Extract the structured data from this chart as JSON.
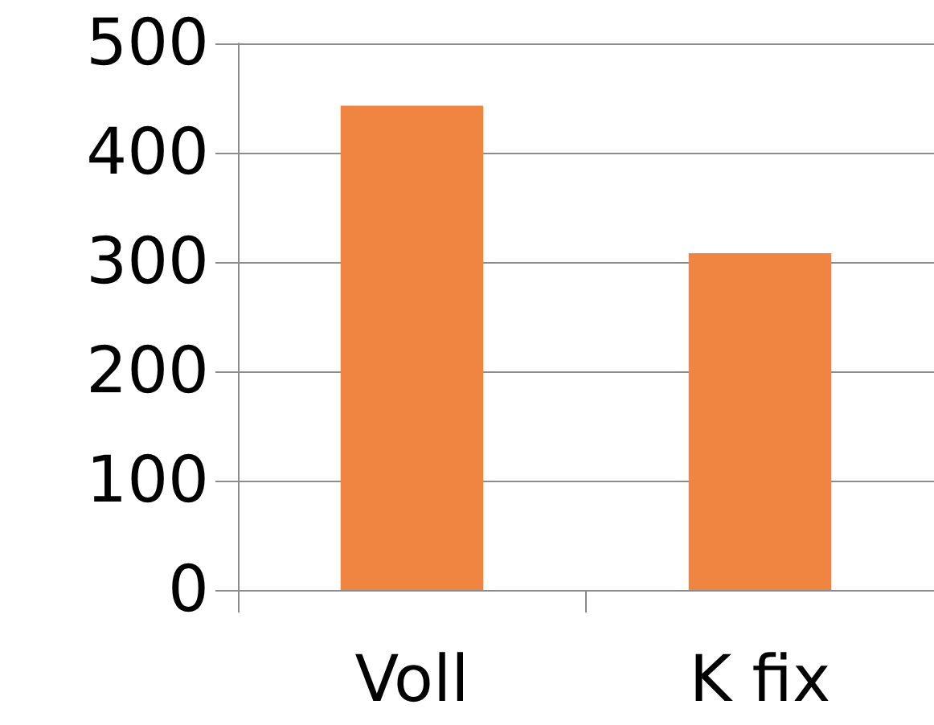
{
  "chart_data": {
    "type": "bar",
    "categories": [
      "Voll",
      "K fix"
    ],
    "values": [
      443,
      308
    ],
    "color": "#ef8540",
    "ylim": [
      0,
      500
    ],
    "yticks": [
      0,
      100,
      200,
      300,
      400,
      500
    ],
    "grid": "y"
  }
}
